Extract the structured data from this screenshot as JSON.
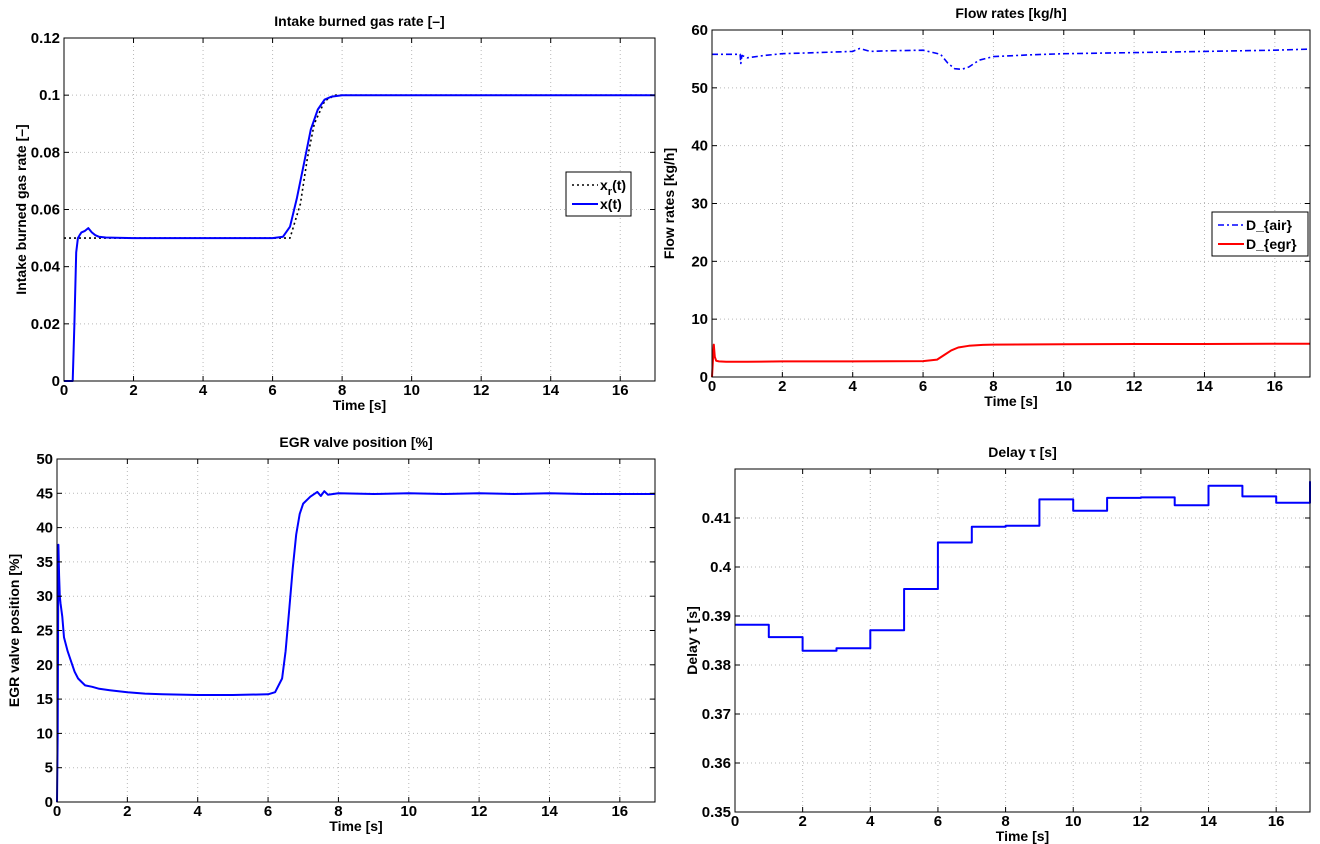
{
  "chart_data": [
    {
      "type": "line",
      "title": "Intake burned gas rate [–]",
      "xlabel": "Time [s]",
      "ylabel": "Intake burned gas rate [–]",
      "xlim": [
        0,
        17
      ],
      "ylim": [
        0,
        0.12
      ],
      "xticks": [
        0,
        2,
        4,
        6,
        8,
        10,
        12,
        14,
        16
      ],
      "yticks": [
        0,
        0.02,
        0.04,
        0.06,
        0.08,
        0.1,
        0.12
      ],
      "ytick_labels": [
        "0",
        "0.02",
        "0.04",
        "0.06",
        "0.08",
        "0.1",
        "0.12"
      ],
      "grid": true,
      "legend_position": "right",
      "series": [
        {
          "name": "x_r(t)",
          "label_main": "x",
          "label_sub": "r",
          "label_tail": "(t)",
          "color": "#000000",
          "dash": "dotted",
          "x": [
            0,
            0.3,
            0.3,
            6.5,
            6.8,
            7.0,
            7.2,
            7.5,
            7.8,
            8.0,
            17
          ],
          "y": [
            0.05,
            0.05,
            0.05,
            0.05,
            0.062,
            0.078,
            0.09,
            0.098,
            0.1,
            0.1,
            0.1
          ]
        },
        {
          "name": "x(t)",
          "color": "#0000ff",
          "dash": "solid",
          "x": [
            0,
            0.25,
            0.3,
            0.35,
            0.4,
            0.45,
            0.5,
            0.6,
            0.7,
            0.8,
            0.9,
            1.0,
            1.2,
            1.5,
            2.0,
            3.0,
            4.0,
            5.0,
            6.0,
            6.3,
            6.5,
            6.7,
            6.9,
            7.1,
            7.3,
            7.5,
            7.7,
            8.0,
            8.5,
            10,
            12,
            14,
            16,
            17
          ],
          "y": [
            0,
            0,
            0.02,
            0.045,
            0.05,
            0.051,
            0.052,
            0.0525,
            0.0535,
            0.052,
            0.051,
            0.0505,
            0.0502,
            0.0501,
            0.05,
            0.05,
            0.05,
            0.05,
            0.05,
            0.0505,
            0.054,
            0.064,
            0.076,
            0.088,
            0.095,
            0.0985,
            0.0995,
            0.1,
            0.1,
            0.1,
            0.1,
            0.1,
            0.1,
            0.1
          ]
        }
      ]
    },
    {
      "type": "line",
      "title": "Flow rates [kg/h]",
      "xlabel": "Time [s]",
      "ylabel": "Flow rates [kg/h]",
      "xlim": [
        0,
        17
      ],
      "ylim": [
        0,
        60
      ],
      "xticks": [
        0,
        2,
        4,
        6,
        8,
        10,
        12,
        14,
        16
      ],
      "yticks": [
        0,
        10,
        20,
        30,
        40,
        50,
        60
      ],
      "ytick_labels": [
        "0",
        "10",
        "20",
        "30",
        "40",
        "50",
        "60"
      ],
      "grid": true,
      "legend_position": "right",
      "series": [
        {
          "name": "D_{air}",
          "color": "#0000ff",
          "dash": "dashdot",
          "x": [
            0,
            0.5,
            0.8,
            0.82,
            0.85,
            1.0,
            1.5,
            2,
            3,
            4,
            4.2,
            4.5,
            5,
            6,
            6.5,
            6.7,
            6.9,
            7.1,
            7.3,
            7.6,
            8,
            9,
            10,
            12,
            14,
            16,
            17
          ],
          "y": [
            55.8,
            55.8,
            55.8,
            54.2,
            55.6,
            55.2,
            55.6,
            55.9,
            56.1,
            56.3,
            56.8,
            56.3,
            56.4,
            56.5,
            55.8,
            54.3,
            53.3,
            53.2,
            53.6,
            54.8,
            55.4,
            55.7,
            55.9,
            56.1,
            56.3,
            56.5,
            56.7
          ]
        },
        {
          "name": "D_{egr}",
          "color": "#ff0000",
          "dash": "solid",
          "x": [
            0,
            0.05,
            0.08,
            0.12,
            0.2,
            0.4,
            1,
            2,
            4,
            6,
            6.4,
            6.6,
            6.8,
            7.0,
            7.3,
            7.7,
            8,
            10,
            12,
            14,
            16,
            17
          ],
          "y": [
            0,
            5.6,
            3.5,
            2.8,
            2.7,
            2.65,
            2.65,
            2.7,
            2.7,
            2.75,
            3.0,
            3.8,
            4.6,
            5.1,
            5.4,
            5.55,
            5.6,
            5.65,
            5.7,
            5.7,
            5.75,
            5.75
          ]
        }
      ]
    },
    {
      "type": "line",
      "title": "EGR valve position [%]",
      "xlabel": "Time [s]",
      "ylabel": "EGR valve position [%]",
      "xlim": [
        0,
        17
      ],
      "ylim": [
        0,
        50
      ],
      "xticks": [
        0,
        2,
        4,
        6,
        8,
        10,
        12,
        14,
        16
      ],
      "yticks": [
        0,
        5,
        10,
        15,
        20,
        25,
        30,
        35,
        40,
        45,
        50
      ],
      "ytick_labels": [
        "0",
        "5",
        "10",
        "15",
        "20",
        "25",
        "30",
        "35",
        "40",
        "45",
        "50"
      ],
      "grid": true,
      "series": [
        {
          "name": "",
          "color": "#0000ff",
          "dash": "solid",
          "x": [
            0,
            0.02,
            0.04,
            0.06,
            0.08,
            0.1,
            0.15,
            0.2,
            0.3,
            0.4,
            0.5,
            0.6,
            0.7,
            0.8,
            1.0,
            1.2,
            1.5,
            2.0,
            2.5,
            3,
            4,
            5,
            6,
            6.2,
            6.4,
            6.5,
            6.6,
            6.7,
            6.8,
            6.9,
            7.0,
            7.2,
            7.4,
            7.5,
            7.6,
            7.7,
            8,
            9,
            10,
            11,
            12,
            13,
            14,
            15,
            16,
            17
          ],
          "y": [
            0,
            10,
            37.5,
            33,
            30,
            29,
            27,
            24,
            22,
            20.5,
            19,
            18,
            17.5,
            17,
            16.8,
            16.5,
            16.3,
            16.0,
            15.8,
            15.7,
            15.6,
            15.6,
            15.7,
            16.0,
            18,
            22,
            28,
            34,
            39,
            42,
            43.5,
            44.5,
            45.2,
            44.6,
            45.3,
            44.8,
            45.0,
            44.9,
            45.0,
            44.9,
            45.0,
            44.9,
            45.0,
            44.9,
            44.9,
            44.9
          ]
        }
      ]
    },
    {
      "type": "line",
      "title": "Delay τ  [s]",
      "xlabel": "Time [s]",
      "ylabel": "Delay τ [s]",
      "xlim": [
        0,
        17
      ],
      "ylim": [
        0.35,
        0.42
      ],
      "xticks": [
        0,
        2,
        4,
        6,
        8,
        10,
        12,
        14,
        16
      ],
      "yticks": [
        0.35,
        0.36,
        0.37,
        0.38,
        0.39,
        0.4,
        0.41
      ],
      "ytick_labels": [
        "0.35",
        "0.36",
        "0.37",
        "0.38",
        "0.39",
        "0.4",
        "0.41"
      ],
      "grid": true,
      "series": [
        {
          "name": "",
          "color": "#0000ff",
          "dash": "solid",
          "step": true,
          "x": [
            0,
            1,
            2,
            3,
            4,
            5,
            6,
            7,
            8,
            9,
            10,
            11,
            12,
            13,
            14,
            15,
            16,
            17
          ],
          "y": [
            0.3882,
            0.3857,
            0.3829,
            0.3834,
            0.3871,
            0.3955,
            0.405,
            0.4082,
            0.4084,
            0.4138,
            0.4115,
            0.4141,
            0.4142,
            0.4126,
            0.4166,
            0.4144,
            0.4131,
            0.4175
          ]
        }
      ]
    }
  ]
}
